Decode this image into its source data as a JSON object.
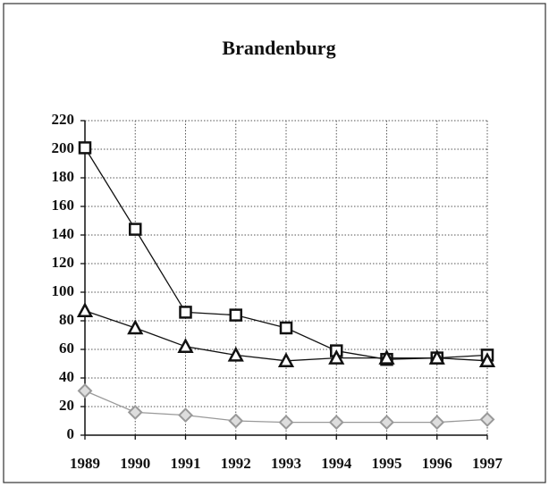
{
  "chart_data": {
    "type": "line",
    "title": "Brandenburg",
    "x": [
      1989,
      1990,
      1991,
      1992,
      1993,
      1994,
      1995,
      1996,
      1997
    ],
    "series": [
      {
        "color": "#111111",
        "marker": "square",
        "values": [
          201,
          144,
          86,
          84,
          75,
          59,
          53,
          54,
          56
        ]
      },
      {
        "color": "#111111",
        "marker": "triangle",
        "values": [
          87,
          75,
          62,
          56,
          52,
          54,
          54,
          54,
          52
        ]
      },
      {
        "color": "#999999",
        "marker": "diamond",
        "values": [
          31,
          16,
          14,
          10,
          9,
          9,
          9,
          9,
          11
        ]
      }
    ],
    "xlim": [
      1989,
      1997
    ],
    "xticks": [
      1989,
      1990,
      1991,
      1992,
      1993,
      1994,
      1995,
      1996,
      1997
    ],
    "ylim": [
      0,
      220
    ],
    "yticks": [
      0,
      20,
      40,
      60,
      80,
      100,
      120,
      140,
      160,
      180,
      200,
      220
    ],
    "grid": true
  }
}
